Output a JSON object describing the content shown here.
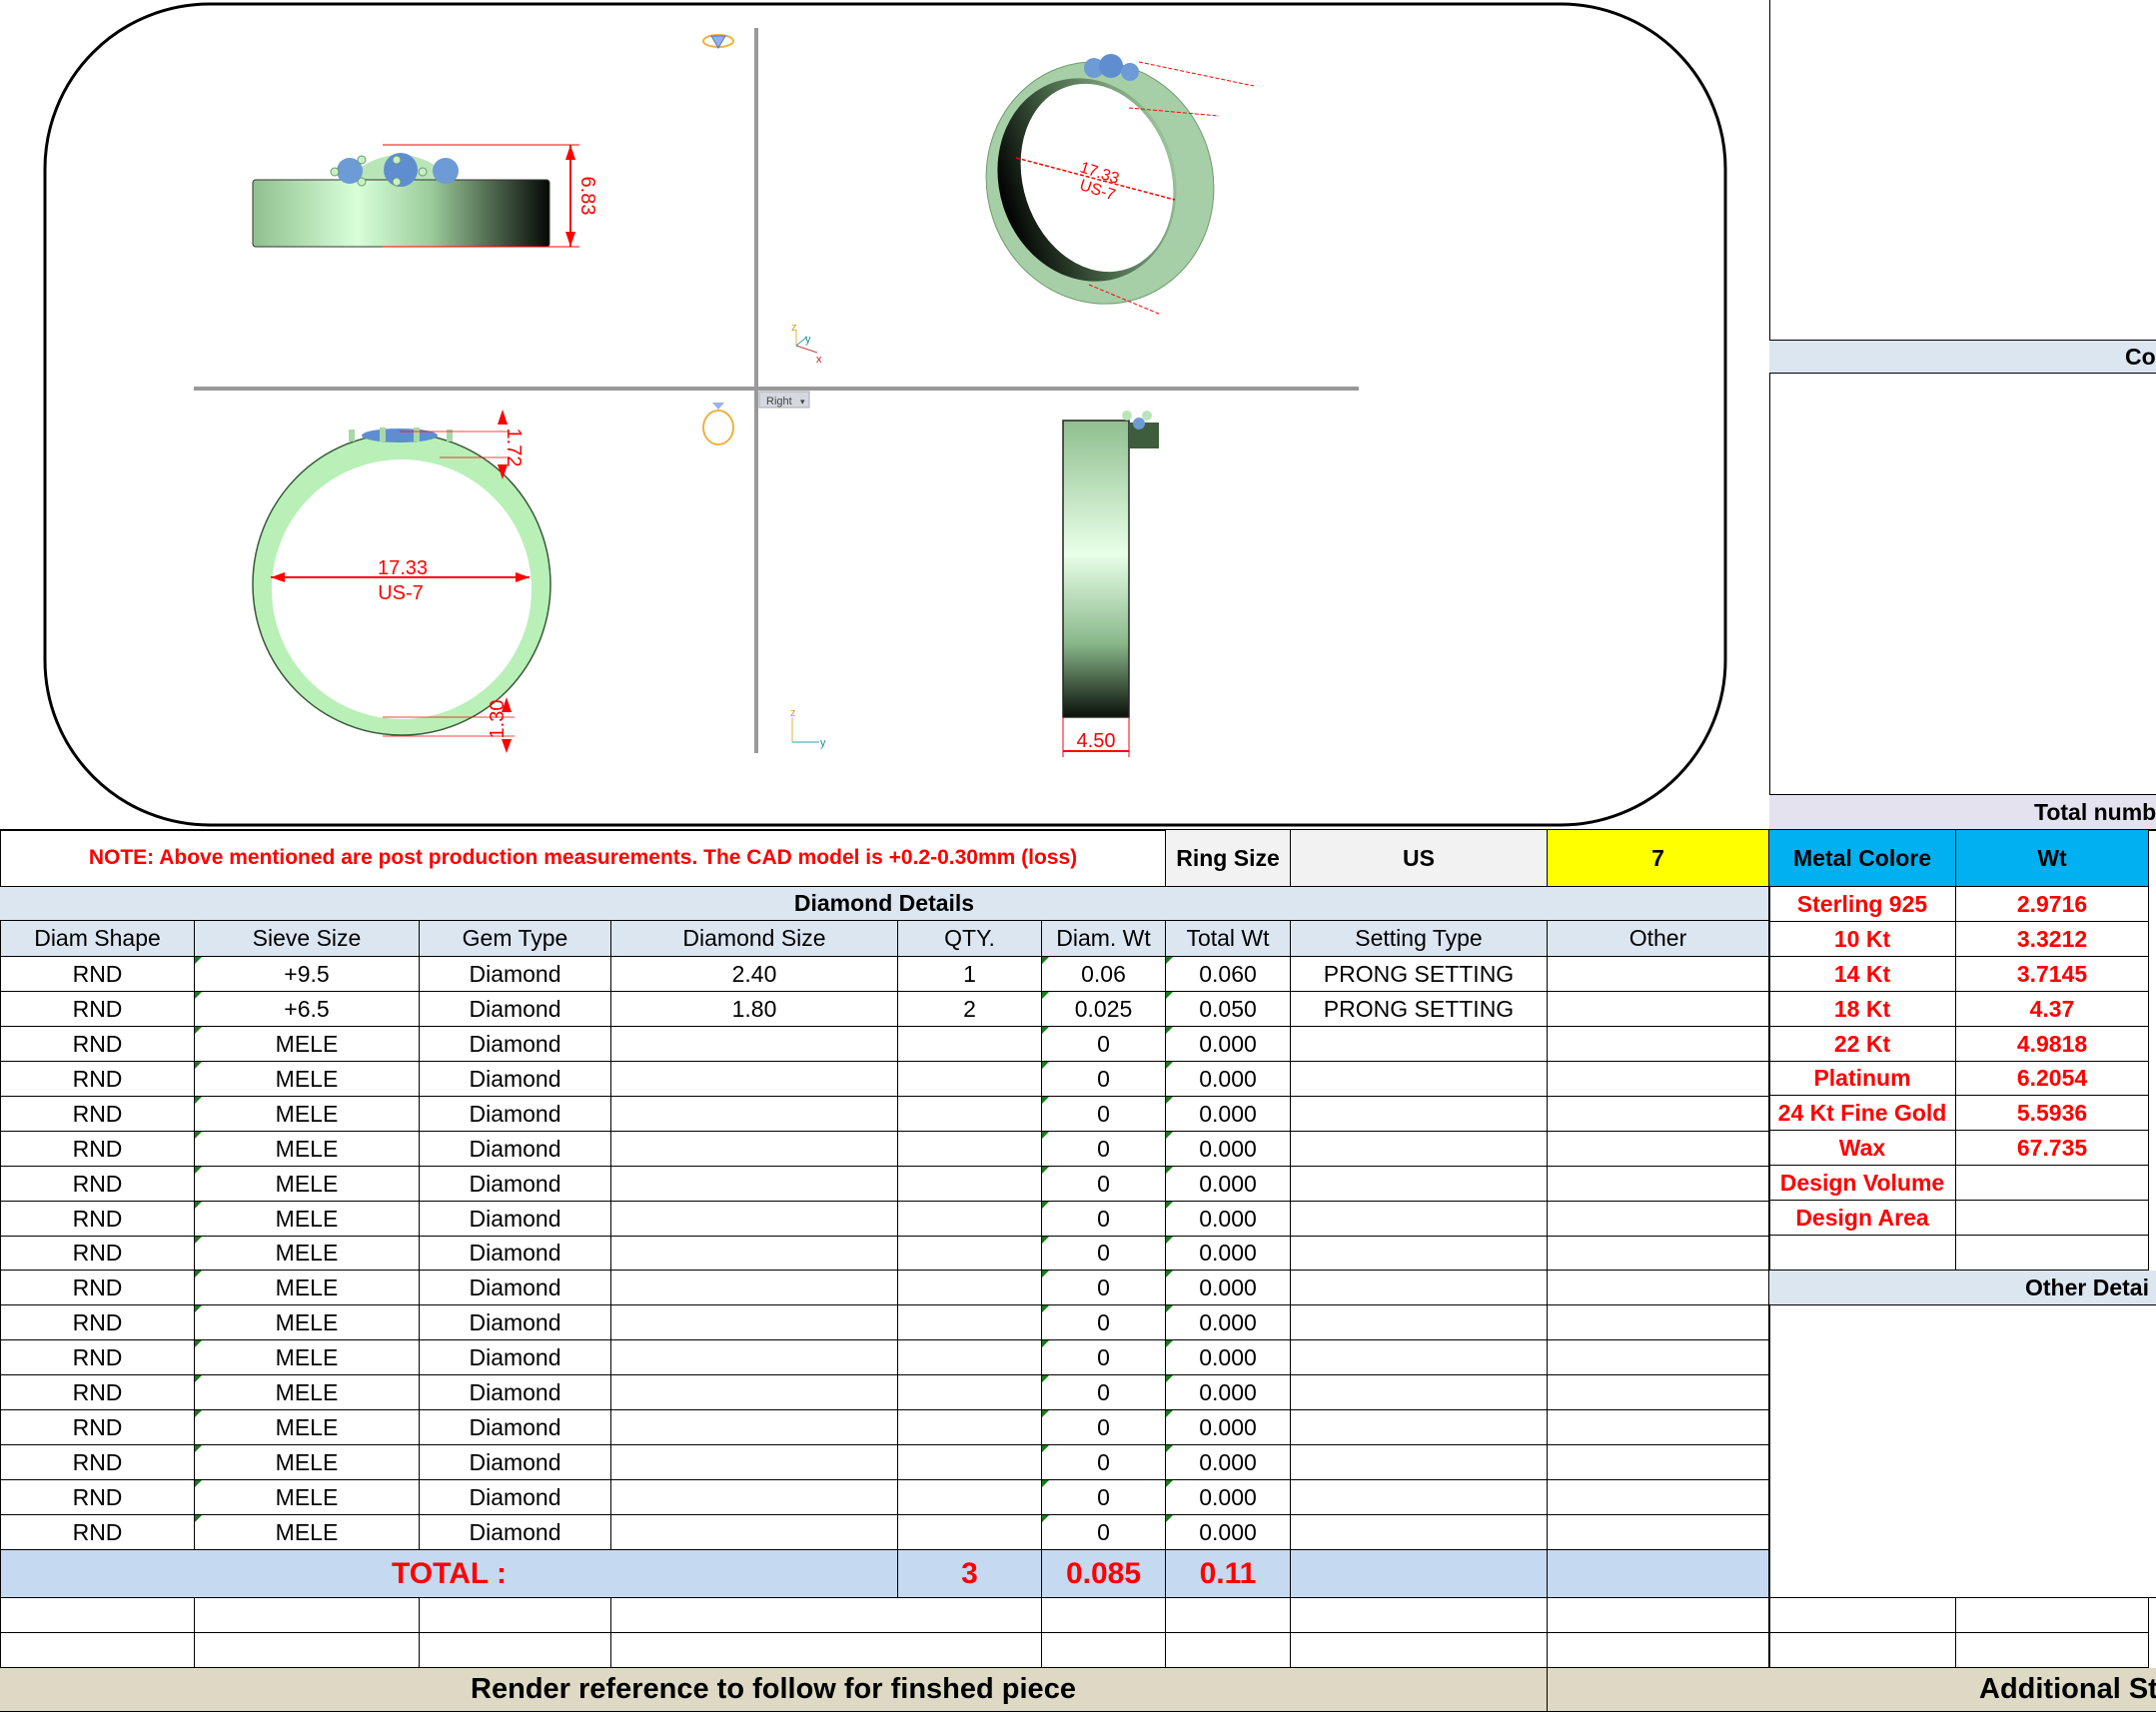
{
  "drawing": {
    "view_label": "Right",
    "dim_height": "6.83",
    "dim_inner_diameter": "17.33",
    "dim_ring_size": "US-7",
    "dim_top": "1.72",
    "dim_bottom": "1.30",
    "dim_width": "4.50",
    "axis_labels": {
      "x": "x",
      "y": "y",
      "z": "z"
    },
    "colors": {
      "metal": "#b5e8b5",
      "stone": "#6d9bd6",
      "dimension": "#ff0000"
    }
  },
  "note": {
    "text": "NOTE: Above mentioned are post production measurements. The CAD model is +0.2-0.30mm (loss)",
    "ring_size_label": "Ring Size",
    "ring_size_system": "US",
    "ring_size_value": "7"
  },
  "diamond_table": {
    "title": "Diamond Details",
    "columns": [
      "Diam Shape",
      "Sieve Size",
      "Gem Type",
      "Diamond Size",
      "QTY.",
      "Diam. Wt",
      "Total Wt",
      "Setting Type",
      "Other"
    ],
    "rows": [
      [
        "RND",
        "+9.5",
        "Diamond",
        "2.40",
        "1",
        "0.06",
        "0.060",
        "PRONG SETTING",
        ""
      ],
      [
        "RND",
        "+6.5",
        "Diamond",
        "1.80",
        "2",
        "0.025",
        "0.050",
        "PRONG SETTING",
        ""
      ],
      [
        "RND",
        "MELE",
        "Diamond",
        "",
        "",
        "0",
        "0.000",
        "",
        ""
      ],
      [
        "RND",
        "MELE",
        "Diamond",
        "",
        "",
        "0",
        "0.000",
        "",
        ""
      ],
      [
        "RND",
        "MELE",
        "Diamond",
        "",
        "",
        "0",
        "0.000",
        "",
        ""
      ],
      [
        "RND",
        "MELE",
        "Diamond",
        "",
        "",
        "0",
        "0.000",
        "",
        ""
      ],
      [
        "RND",
        "MELE",
        "Diamond",
        "",
        "",
        "0",
        "0.000",
        "",
        ""
      ],
      [
        "RND",
        "MELE",
        "Diamond",
        "",
        "",
        "0",
        "0.000",
        "",
        ""
      ],
      [
        "RND",
        "MELE",
        "Diamond",
        "",
        "",
        "0",
        "0.000",
        "",
        ""
      ],
      [
        "RND",
        "MELE",
        "Diamond",
        "",
        "",
        "0",
        "0.000",
        "",
        ""
      ],
      [
        "RND",
        "MELE",
        "Diamond",
        "",
        "",
        "0",
        "0.000",
        "",
        ""
      ],
      [
        "RND",
        "MELE",
        "Diamond",
        "",
        "",
        "0",
        "0.000",
        "",
        ""
      ],
      [
        "RND",
        "MELE",
        "Diamond",
        "",
        "",
        "0",
        "0.000",
        "",
        ""
      ],
      [
        "RND",
        "MELE",
        "Diamond",
        "",
        "",
        "0",
        "0.000",
        "",
        ""
      ],
      [
        "RND",
        "MELE",
        "Diamond",
        "",
        "",
        "0",
        "0.000",
        "",
        ""
      ],
      [
        "RND",
        "MELE",
        "Diamond",
        "",
        "",
        "0",
        "0.000",
        "",
        ""
      ],
      [
        "RND",
        "MELE",
        "Diamond",
        "",
        "",
        "0",
        "0.000",
        "",
        ""
      ]
    ],
    "total": {
      "label": "TOTAL :",
      "qty": "3",
      "diam_wt": "0.085",
      "total_wt": "0.11"
    }
  },
  "footer": {
    "render_reference": "Render reference to follow for finshed piece",
    "additional": "Additional Sta"
  },
  "right_panel": {
    "section_co": "Co",
    "section_total": "Total numb",
    "metal_header": {
      "metal": "Metal Colore",
      "wt": "Wt"
    },
    "metals": [
      {
        "name": "Sterling 925",
        "wt": "2.9716"
      },
      {
        "name": "10 Kt",
        "wt": "3.3212"
      },
      {
        "name": "14 Kt",
        "wt": "3.7145"
      },
      {
        "name": "18 Kt",
        "wt": "4.37"
      },
      {
        "name": "22 Kt",
        "wt": "4.9818"
      },
      {
        "name": "Platinum",
        "wt": "6.2054"
      },
      {
        "name": "24 Kt Fine Gold",
        "wt": "5.5936"
      },
      {
        "name": "Wax",
        "wt": "67.735"
      },
      {
        "name": "Design Volume",
        "wt": ""
      },
      {
        "name": "Design Area",
        "wt": ""
      }
    ],
    "section_other": "Other Detai",
    "colors": {
      "header_blue": "#00b0f0",
      "highlight_yellow": "#ffff00",
      "section_blue": "#dce6f1"
    }
  }
}
